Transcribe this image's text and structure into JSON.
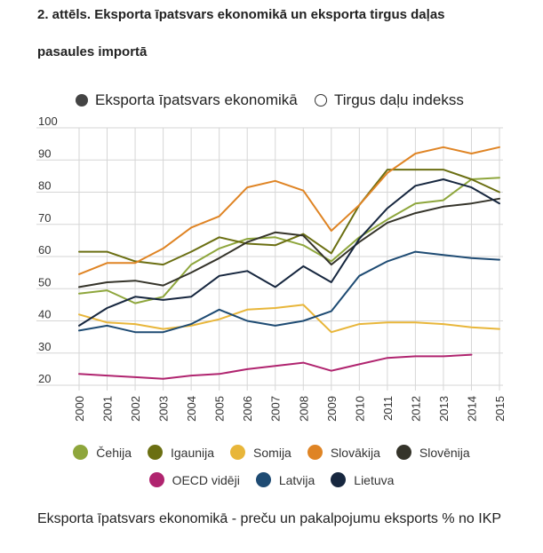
{
  "title_line1": "2. attēls. Eksporta īpatsvars ekonomikā un eksporta tirgus daļas",
  "title_line2": "pasaules importā",
  "toggles": [
    {
      "label": "Eksporta īpatsvars ekonomikā",
      "selected": true
    },
    {
      "label": "Tirgus daļu indekss",
      "selected": false
    }
  ],
  "footnote": "Eksporta īpatsvars ekonomikā - preču un pakalpojumu eksports % no IKP",
  "chart_data": {
    "type": "line",
    "x": [
      "2000",
      "2001",
      "2002",
      "2003",
      "2004",
      "2005",
      "2006",
      "2007",
      "2008",
      "2009",
      "2010",
      "2011",
      "2012",
      "2013",
      "2014",
      "2015"
    ],
    "ylim": [
      20,
      100
    ],
    "yticks": [
      20,
      30,
      40,
      50,
      60,
      70,
      80,
      90,
      100
    ],
    "grid": true,
    "legend_position": "bottom",
    "series": [
      {
        "name": "Čehija",
        "color": "#8ea63c",
        "values": [
          48.5,
          49.5,
          45.5,
          47.5,
          57.5,
          62.5,
          65.5,
          66,
          63.5,
          58.5,
          66,
          71.5,
          76.5,
          77.5,
          84,
          84.5
        ]
      },
      {
        "name": "Igaunija",
        "color": "#6b6f12",
        "values": [
          61.5,
          61.5,
          58.5,
          57.5,
          61.5,
          66,
          64,
          63.5,
          67,
          61,
          76,
          87,
          87,
          87,
          84,
          80
        ]
      },
      {
        "name": "Somija",
        "color": "#e8b63a",
        "values": [
          42,
          39.5,
          39,
          37.5,
          38.5,
          40.5,
          43.5,
          44,
          45,
          36.5,
          39,
          39.5,
          39.5,
          39,
          38,
          37.5
        ]
      },
      {
        "name": "Slovākija",
        "color": "#df8424",
        "values": [
          54.5,
          58,
          58,
          62.5,
          69,
          72.5,
          81.5,
          83.5,
          80.5,
          68,
          76,
          86,
          92,
          94,
          92,
          94
        ]
      },
      {
        "name": "Slovēnija",
        "color": "#35342a",
        "values": [
          50.5,
          52,
          52.5,
          51,
          55,
          59.5,
          64.5,
          67.5,
          66.5,
          57.5,
          64.5,
          70.5,
          73.5,
          75.5,
          76.5,
          78
        ]
      },
      {
        "name": "OECD vidēji",
        "color": "#b0246f",
        "values": [
          23.5,
          23,
          22.5,
          22,
          23,
          23.5,
          25,
          26,
          27,
          24.5,
          26.5,
          28.5,
          29,
          29,
          29.5,
          null
        ]
      },
      {
        "name": "Latvija",
        "color": "#1e4b73",
        "values": [
          37,
          38.5,
          36.5,
          36.5,
          39,
          43.5,
          40,
          38.5,
          40,
          43,
          54,
          58.5,
          61.5,
          60.5,
          59.5,
          59
        ]
      },
      {
        "name": "Lietuva",
        "color": "#17273f",
        "values": [
          38.5,
          44,
          47.5,
          46.5,
          47.5,
          54,
          55.5,
          50.5,
          57,
          52,
          65.5,
          75,
          82,
          84,
          81.5,
          76.5
        ]
      }
    ]
  }
}
